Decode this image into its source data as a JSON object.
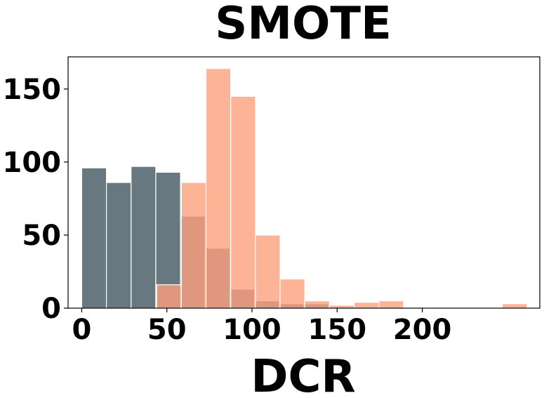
{
  "chart_data": {
    "type": "bar",
    "title": "SMOTE",
    "xlabel": "DCR",
    "ylabel": "",
    "xlim": [
      -8,
      269
    ],
    "ylim": [
      0,
      172
    ],
    "xticks": [
      "0",
      "50",
      "100",
      "150",
      "200"
    ],
    "xtick_values": [
      0,
      50,
      100,
      150,
      200
    ],
    "yticks": [
      "0",
      "50",
      "100",
      "150"
    ],
    "ytick_values": [
      0,
      50,
      100,
      150
    ],
    "grid": false,
    "series": [
      {
        "color": "#4e606b",
        "opacity": 0.85,
        "bins": [
          {
            "x0": 0,
            "x1": 14.5,
            "value": 96
          },
          {
            "x0": 14.5,
            "x1": 29,
            "value": 86
          },
          {
            "x0": 29,
            "x1": 43.5,
            "value": 97
          },
          {
            "x0": 43.5,
            "x1": 58,
            "value": 93
          },
          {
            "x0": 58,
            "x1": 72.5,
            "value": 63
          },
          {
            "x0": 72.5,
            "x1": 87,
            "value": 41
          },
          {
            "x0": 87,
            "x1": 101.5,
            "value": 13
          },
          {
            "x0": 101.5,
            "x1": 116,
            "value": 5
          },
          {
            "x0": 116,
            "x1": 130.5,
            "value": 3
          },
          {
            "x0": 130.5,
            "x1": 145,
            "value": 3
          }
        ]
      },
      {
        "color": "#fda07c",
        "opacity": 0.8,
        "bins": [
          {
            "x0": 44,
            "x1": 58.5,
            "value": 16
          },
          {
            "x0": 58.5,
            "x1": 73,
            "value": 86
          },
          {
            "x0": 73,
            "x1": 87.5,
            "value": 164
          },
          {
            "x0": 87.5,
            "x1": 102,
            "value": 145
          },
          {
            "x0": 102,
            "x1": 116.5,
            "value": 50
          },
          {
            "x0": 116.5,
            "x1": 131,
            "value": 20
          },
          {
            "x0": 131,
            "x1": 145.5,
            "value": 5
          },
          {
            "x0": 145.5,
            "x1": 160,
            "value": 2
          },
          {
            "x0": 160,
            "x1": 174.5,
            "value": 4
          },
          {
            "x0": 174.5,
            "x1": 189,
            "value": 5
          },
          {
            "x0": 189,
            "x1": 203.5,
            "value": 0
          },
          {
            "x0": 203.5,
            "x1": 218,
            "value": 0
          },
          {
            "x0": 218,
            "x1": 232.5,
            "value": 0
          },
          {
            "x0": 232.5,
            "x1": 247,
            "value": 0
          },
          {
            "x0": 247,
            "x1": 261.5,
            "value": 3
          }
        ]
      }
    ]
  }
}
